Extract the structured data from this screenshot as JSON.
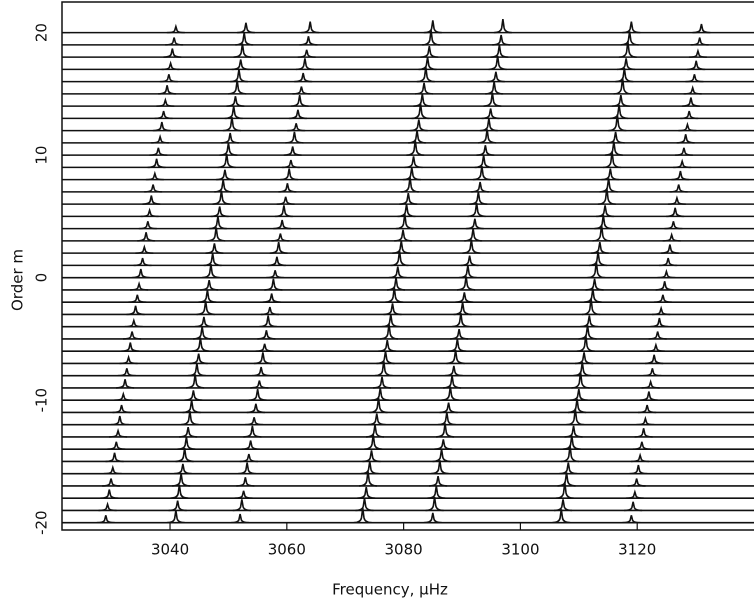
{
  "chart_data": {
    "type": "stacked-spectra",
    "xlabel": "Frequency, μHz",
    "ylabel": "Order m",
    "xlim": [
      3021.5,
      3140
    ],
    "ylim": [
      -20.6,
      22.5
    ],
    "xticks": [
      3040,
      3060,
      3080,
      3100,
      3120
    ],
    "yticks": [
      -20,
      -10,
      0,
      10,
      20
    ],
    "color": "#111111",
    "series": [
      {
        "m": -20,
        "peaks_x": [
          3029,
          3041,
          3052,
          3073,
          3085,
          3107,
          3119
        ],
        "peaks_y": [
          0.6,
          1.0,
          0.7,
          1.2,
          0.8,
          1.1,
          0.6
        ]
      },
      {
        "m": -19,
        "peaks_x": [
          3029.3,
          3041.3,
          3052.3,
          3073.3,
          3085.3,
          3107.3,
          3119.3
        ],
        "peaks_y": [
          0.5,
          0.8,
          0.9,
          1.0,
          1.1,
          0.9,
          0.7
        ]
      },
      {
        "m": -18,
        "peaks_x": [
          3029.6,
          3041.6,
          3052.6,
          3073.6,
          3085.6,
          3107.6,
          3119.6
        ],
        "peaks_y": [
          0.7,
          1.1,
          0.6,
          0.9,
          1.0,
          1.3,
          0.5
        ]
      },
      {
        "m": -17,
        "peaks_x": [
          3029.9,
          3041.9,
          3052.9,
          3073.9,
          3085.9,
          3107.9,
          3119.9
        ],
        "peaks_y": [
          0.6,
          1.0,
          0.7,
          1.2,
          0.8,
          1.1,
          0.6
        ]
      },
      {
        "m": -16,
        "peaks_x": [
          3030.2,
          3042.2,
          3053.2,
          3074.2,
          3086.2,
          3108.2,
          3120.2
        ],
        "peaks_y": [
          0.5,
          0.8,
          0.9,
          1.0,
          1.1,
          0.9,
          0.7
        ]
      },
      {
        "m": -15,
        "peaks_x": [
          3030.5,
          3042.5,
          3053.5,
          3074.5,
          3086.5,
          3108.5,
          3120.5
        ],
        "peaks_y": [
          0.7,
          1.1,
          0.6,
          0.9,
          1.0,
          1.3,
          0.5
        ]
      },
      {
        "m": -14,
        "peaks_x": [
          3030.8,
          3042.8,
          3053.8,
          3074.8,
          3086.8,
          3108.8,
          3120.8
        ],
        "peaks_y": [
          0.6,
          1.0,
          0.7,
          1.2,
          0.8,
          1.1,
          0.6
        ]
      },
      {
        "m": -13,
        "peaks_x": [
          3031.1,
          3043.1,
          3054.1,
          3075.1,
          3087.1,
          3109.1,
          3121.1
        ],
        "peaks_y": [
          0.5,
          0.8,
          0.9,
          1.0,
          1.1,
          0.9,
          0.7
        ]
      },
      {
        "m": -12,
        "peaks_x": [
          3031.4,
          3043.4,
          3054.4,
          3075.4,
          3087.4,
          3109.4,
          3121.4
        ],
        "peaks_y": [
          0.7,
          1.1,
          0.6,
          0.9,
          1.0,
          1.3,
          0.5
        ]
      },
      {
        "m": -11,
        "peaks_x": [
          3031.7,
          3043.7,
          3054.7,
          3075.7,
          3087.7,
          3109.7,
          3121.7
        ],
        "peaks_y": [
          0.6,
          1.0,
          0.7,
          1.2,
          0.8,
          1.1,
          0.6
        ]
      },
      {
        "m": -10,
        "peaks_x": [
          3032,
          3044,
          3055,
          3076,
          3088,
          3110,
          3122
        ],
        "peaks_y": [
          0.5,
          0.8,
          0.9,
          1.0,
          1.1,
          0.9,
          0.7
        ]
      },
      {
        "m": -9,
        "peaks_x": [
          3032.3,
          3044.3,
          3055.3,
          3076.3,
          3088.3,
          3110.3,
          3122.3
        ],
        "peaks_y": [
          0.7,
          1.1,
          0.6,
          0.9,
          1.0,
          1.3,
          0.5
        ]
      },
      {
        "m": -8,
        "peaks_x": [
          3032.6,
          3044.6,
          3055.6,
          3076.6,
          3088.6,
          3110.6,
          3122.6
        ],
        "peaks_y": [
          0.6,
          1.0,
          0.7,
          1.2,
          0.8,
          1.1,
          0.6
        ]
      },
      {
        "m": -7,
        "peaks_x": [
          3032.9,
          3044.9,
          3055.9,
          3076.9,
          3088.9,
          3110.9,
          3122.9
        ],
        "peaks_y": [
          0.5,
          0.8,
          0.9,
          1.0,
          1.1,
          0.9,
          0.7
        ]
      },
      {
        "m": -6,
        "peaks_x": [
          3033.2,
          3045.2,
          3056.2,
          3077.2,
          3089.2,
          3111.2,
          3123.2
        ],
        "peaks_y": [
          0.7,
          1.1,
          0.6,
          0.9,
          1.0,
          1.3,
          0.5
        ]
      },
      {
        "m": -5,
        "peaks_x": [
          3033.5,
          3045.5,
          3056.5,
          3077.5,
          3089.5,
          3111.5,
          3123.5
        ],
        "peaks_y": [
          0.6,
          1.0,
          0.7,
          1.2,
          0.8,
          1.1,
          0.6
        ]
      },
      {
        "m": -4,
        "peaks_x": [
          3033.8,
          3045.8,
          3056.8,
          3077.8,
          3089.8,
          3111.8,
          3123.8
        ],
        "peaks_y": [
          0.5,
          0.8,
          0.9,
          1.0,
          1.1,
          0.9,
          0.7
        ]
      },
      {
        "m": -3,
        "peaks_x": [
          3034.1,
          3046.1,
          3057.1,
          3078.1,
          3090.1,
          3112.1,
          3124.1
        ],
        "peaks_y": [
          0.7,
          1.1,
          0.6,
          0.9,
          1.0,
          1.3,
          0.5
        ]
      },
      {
        "m": -2,
        "peaks_x": [
          3034.4,
          3046.4,
          3057.4,
          3078.4,
          3090.4,
          3112.4,
          3124.4
        ],
        "peaks_y": [
          0.6,
          1.0,
          0.7,
          1.2,
          0.8,
          1.1,
          0.6
        ]
      },
      {
        "m": -1,
        "peaks_x": [
          3034.7,
          3046.7,
          3057.7,
          3078.7,
          3090.7,
          3112.7,
          3124.7
        ],
        "peaks_y": [
          0.5,
          0.8,
          0.9,
          1.0,
          1.1,
          0.9,
          0.7
        ]
      },
      {
        "m": 0,
        "peaks_x": [
          3035,
          3047,
          3058,
          3079,
          3091,
          3113,
          3125
        ],
        "peaks_y": [
          0.7,
          1.1,
          0.6,
          0.9,
          1.0,
          1.3,
          0.5
        ]
      },
      {
        "m": 1,
        "peaks_x": [
          3035.3,
          3047.3,
          3058.3,
          3079.3,
          3091.3,
          3113.3,
          3125.3
        ],
        "peaks_y": [
          0.6,
          1.0,
          0.7,
          1.2,
          0.8,
          1.1,
          0.6
        ]
      },
      {
        "m": 2,
        "peaks_x": [
          3035.6,
          3047.6,
          3058.6,
          3079.6,
          3091.6,
          3113.6,
          3125.6
        ],
        "peaks_y": [
          0.5,
          0.8,
          0.9,
          1.0,
          1.1,
          0.9,
          0.7
        ]
      },
      {
        "m": 3,
        "peaks_x": [
          3035.9,
          3047.9,
          3058.9,
          3079.9,
          3091.9,
          3113.9,
          3125.9
        ],
        "peaks_y": [
          0.7,
          1.1,
          0.6,
          0.9,
          1.0,
          1.3,
          0.5
        ]
      },
      {
        "m": 4,
        "peaks_x": [
          3036.2,
          3048.2,
          3059.2,
          3080.2,
          3092.2,
          3114.2,
          3126.2
        ],
        "peaks_y": [
          0.6,
          1.0,
          0.7,
          1.2,
          0.8,
          1.1,
          0.6
        ]
      },
      {
        "m": 5,
        "peaks_x": [
          3036.5,
          3048.5,
          3059.5,
          3080.5,
          3092.5,
          3114.5,
          3126.5
        ],
        "peaks_y": [
          0.5,
          0.8,
          0.9,
          1.0,
          1.1,
          0.9,
          0.7
        ]
      },
      {
        "m": 6,
        "peaks_x": [
          3036.8,
          3048.8,
          3059.8,
          3080.8,
          3092.8,
          3114.8,
          3126.8
        ],
        "peaks_y": [
          0.7,
          1.1,
          0.6,
          0.9,
          1.0,
          1.3,
          0.5
        ]
      },
      {
        "m": 7,
        "peaks_x": [
          3037.1,
          3049.1,
          3060.1,
          3081.1,
          3093.1,
          3115.1,
          3127.1
        ],
        "peaks_y": [
          0.6,
          1.0,
          0.7,
          1.2,
          0.8,
          1.1,
          0.6
        ]
      },
      {
        "m": 8,
        "peaks_x": [
          3037.4,
          3049.4,
          3060.4,
          3081.4,
          3093.4,
          3115.4,
          3127.4
        ],
        "peaks_y": [
          0.5,
          0.8,
          0.9,
          1.0,
          1.1,
          0.9,
          0.7
        ]
      },
      {
        "m": 9,
        "peaks_x": [
          3037.7,
          3049.7,
          3060.7,
          3081.7,
          3093.7,
          3115.7,
          3127.7
        ],
        "peaks_y": [
          0.7,
          1.1,
          0.6,
          0.9,
          1.0,
          1.3,
          0.5
        ]
      },
      {
        "m": 10,
        "peaks_x": [
          3038,
          3050,
          3061,
          3082,
          3094,
          3116,
          3128
        ],
        "peaks_y": [
          0.6,
          1.0,
          0.7,
          1.2,
          0.8,
          1.1,
          0.6
        ]
      },
      {
        "m": 11,
        "peaks_x": [
          3038.3,
          3050.3,
          3061.3,
          3082.3,
          3094.3,
          3116.3,
          3128.3
        ],
        "peaks_y": [
          0.5,
          0.8,
          0.9,
          1.0,
          1.1,
          0.9,
          0.7
        ]
      },
      {
        "m": 12,
        "peaks_x": [
          3038.6,
          3050.6,
          3061.6,
          3082.6,
          3094.6,
          3116.6,
          3128.6
        ],
        "peaks_y": [
          0.7,
          1.1,
          0.6,
          0.9,
          1.0,
          1.3,
          0.5
        ]
      },
      {
        "m": 13,
        "peaks_x": [
          3038.9,
          3050.9,
          3061.9,
          3082.9,
          3094.9,
          3116.9,
          3128.9
        ],
        "peaks_y": [
          0.6,
          1.0,
          0.7,
          1.2,
          0.8,
          1.1,
          0.6
        ]
      },
      {
        "m": 14,
        "peaks_x": [
          3039.2,
          3051.2,
          3062.2,
          3083.2,
          3095.2,
          3117.2,
          3129.2
        ],
        "peaks_y": [
          0.5,
          0.8,
          0.9,
          1.0,
          1.1,
          0.9,
          0.7
        ]
      },
      {
        "m": 15,
        "peaks_x": [
          3039.5,
          3051.5,
          3062.5,
          3083.5,
          3095.5,
          3117.5,
          3129.5
        ],
        "peaks_y": [
          0.7,
          1.1,
          0.6,
          0.9,
          1.0,
          1.3,
          0.5
        ]
      },
      {
        "m": 16,
        "peaks_x": [
          3039.8,
          3051.8,
          3062.8,
          3083.8,
          3095.8,
          3117.8,
          3129.8
        ],
        "peaks_y": [
          0.6,
          1.0,
          0.7,
          1.2,
          0.8,
          1.1,
          0.6
        ]
      },
      {
        "m": 17,
        "peaks_x": [
          3040.1,
          3052.1,
          3063.1,
          3084.1,
          3096.1,
          3118.1,
          3130.1
        ],
        "peaks_y": [
          0.5,
          0.8,
          0.9,
          1.0,
          1.1,
          0.9,
          0.7
        ]
      },
      {
        "m": 18,
        "peaks_x": [
          3040.4,
          3052.4,
          3063.4,
          3084.4,
          3096.4,
          3118.4,
          3130.4
        ],
        "peaks_y": [
          0.7,
          1.1,
          0.6,
          0.9,
          1.0,
          1.3,
          0.5
        ]
      },
      {
        "m": 19,
        "peaks_x": [
          3040.7,
          3052.7,
          3063.7,
          3084.7,
          3096.7,
          3118.7,
          3130.7
        ],
        "peaks_y": [
          0.6,
          1.0,
          0.7,
          1.2,
          0.8,
          1.1,
          0.6
        ]
      },
      {
        "m": 20,
        "peaks_x": [
          3041,
          3053,
          3064,
          3085,
          3097,
          3119,
          3131
        ],
        "peaks_y": [
          0.5,
          0.8,
          0.9,
          1.0,
          1.1,
          0.9,
          0.7
        ]
      }
    ]
  }
}
